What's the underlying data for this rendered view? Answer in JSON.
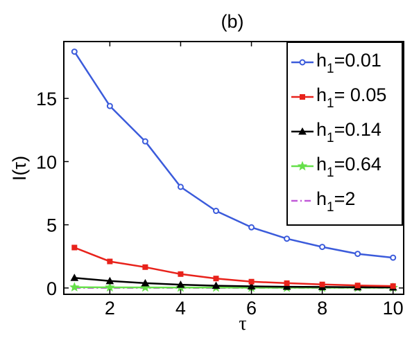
{
  "chart_data": {
    "type": "line",
    "title": "(b)",
    "xlabel": "τ",
    "ylabel": "I(τ)",
    "xlim": [
      0.7,
      10.3
    ],
    "ylim": [
      -0.5,
      19.5
    ],
    "xticks": [
      2,
      4,
      6,
      8,
      10
    ],
    "yticks": [
      0,
      5,
      10,
      15
    ],
    "grid": false,
    "legend_position": "top-right",
    "x": [
      1,
      2,
      3,
      4,
      5,
      6,
      7,
      8,
      9,
      10
    ],
    "series": [
      {
        "name_main": "h",
        "name_sub": "1",
        "name_rest": "=0.01",
        "color": "#3b5bdb",
        "marker": "circle",
        "dash": "solid",
        "values": [
          18.7,
          14.4,
          11.6,
          8.0,
          6.1,
          4.8,
          3.9,
          3.25,
          2.7,
          2.4
        ]
      },
      {
        "name_main": "h",
        "name_sub": "1",
        "name_rest": "= 0.05",
        "color": "#e8221b",
        "marker": "square",
        "dash": "solid",
        "values": [
          3.2,
          2.1,
          1.65,
          1.1,
          0.75,
          0.5,
          0.38,
          0.28,
          0.2,
          0.15
        ]
      },
      {
        "name_main": "h",
        "name_sub": "1",
        "name_rest": "=0.14",
        "color": "#000000",
        "marker": "triangle",
        "dash": "solid",
        "values": [
          0.8,
          0.55,
          0.38,
          0.26,
          0.18,
          0.13,
          0.1,
          0.08,
          0.06,
          0.05
        ]
      },
      {
        "name_main": "h",
        "name_sub": "1",
        "name_rest": "=0.64",
        "color": "#66e04a",
        "marker": "star",
        "dash": "solid",
        "values": [
          0.06,
          0.05,
          0.04,
          0.03,
          0.03,
          0.02,
          0.02,
          0.02,
          0.02,
          0.02
        ]
      },
      {
        "name_main": "h",
        "name_sub": "1",
        "name_rest": "=2",
        "color": "#c15ad8",
        "marker": "none",
        "dash": "dashdot",
        "values": [
          0.01,
          0.01,
          0.01,
          0.01,
          0.01,
          0.01,
          0.01,
          0.01,
          0.01,
          0.01
        ]
      }
    ]
  }
}
